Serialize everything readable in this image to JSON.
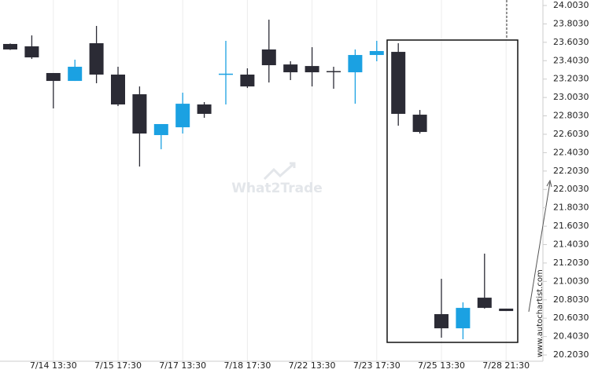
{
  "chart_data": {
    "type": "candlestick",
    "watermark": "What2Trade",
    "side_text": "www.autochartist.com",
    "categories": [
      null,
      null,
      "7/14 13:30",
      null,
      null,
      "7/15 17:30",
      null,
      null,
      "7/17 13:30",
      null,
      null,
      "7/18 17:30",
      null,
      null,
      "7/22 13:30",
      null,
      null,
      "7/23 17:30",
      null,
      null,
      "7/25 13:30",
      null,
      null,
      "7/28 21:30"
    ],
    "open": [
      23.585,
      23.559,
      23.269,
      23.183,
      23.593,
      23.252,
      23.038,
      22.594,
      22.679,
      22.927,
      23.252,
      23.252,
      23.525,
      23.362,
      23.345,
      23.29,
      23.277,
      23.465,
      23.499,
      22.816,
      20.647,
      20.493,
      20.826,
      20.707
    ],
    "high": [
      23.59,
      23.678,
      23.269,
      23.414,
      23.781,
      23.337,
      23.123,
      22.714,
      23.055,
      22.953,
      23.619,
      23.32,
      23.849,
      23.397,
      23.55,
      23.337,
      23.525,
      23.619,
      23.593,
      22.867,
      21.031,
      20.775,
      21.305,
      20.707
    ],
    "low": [
      23.52,
      23.422,
      22.884,
      23.183,
      23.158,
      22.91,
      22.252,
      22.44,
      22.611,
      22.782,
      22.927,
      23.106,
      23.166,
      23.192,
      23.123,
      23.098,
      22.935,
      23.397,
      22.696,
      22.611,
      20.391,
      20.374,
      20.707,
      20.681
    ],
    "close": [
      23.525,
      23.439,
      23.183,
      23.337,
      23.252,
      22.927,
      22.611,
      22.714,
      22.935,
      22.825,
      23.262,
      23.123,
      23.354,
      23.277,
      23.277,
      23.28,
      23.465,
      23.508,
      22.825,
      22.628,
      20.493,
      20.715,
      20.715,
      20.681
    ],
    "up_color": "#1ba1e2",
    "down_color": "#2b2b35",
    "ylim": [
      20.135,
      24.063
    ],
    "yticks": [
      {
        "value": 20.203,
        "label": "20.2030"
      },
      {
        "value": 20.403,
        "label": "20.4030"
      },
      {
        "value": 20.603,
        "label": "20.6030"
      },
      {
        "value": 20.803,
        "label": "20.8030"
      },
      {
        "value": 21.003,
        "label": "21.0030"
      },
      {
        "value": 21.203,
        "label": "21.2030"
      },
      {
        "value": 21.403,
        "label": "21.4030"
      },
      {
        "value": 21.603,
        "label": "21.6030"
      },
      {
        "value": 21.803,
        "label": "21.8030"
      },
      {
        "value": 22.003,
        "label": "22.0030"
      },
      {
        "value": 22.203,
        "label": "22.2030"
      },
      {
        "value": 22.403,
        "label": "22.4030"
      },
      {
        "value": 22.603,
        "label": "22.6030"
      },
      {
        "value": 22.803,
        "label": "22.8030"
      },
      {
        "value": 23.003,
        "label": "23.0030"
      },
      {
        "value": 23.203,
        "label": "23.2030"
      },
      {
        "value": 23.403,
        "label": "23.4030"
      },
      {
        "value": 23.603,
        "label": "23.6030"
      },
      {
        "value": 23.803,
        "label": "23.8030"
      },
      {
        "value": 24.003,
        "label": "24.0030"
      }
    ]
  }
}
